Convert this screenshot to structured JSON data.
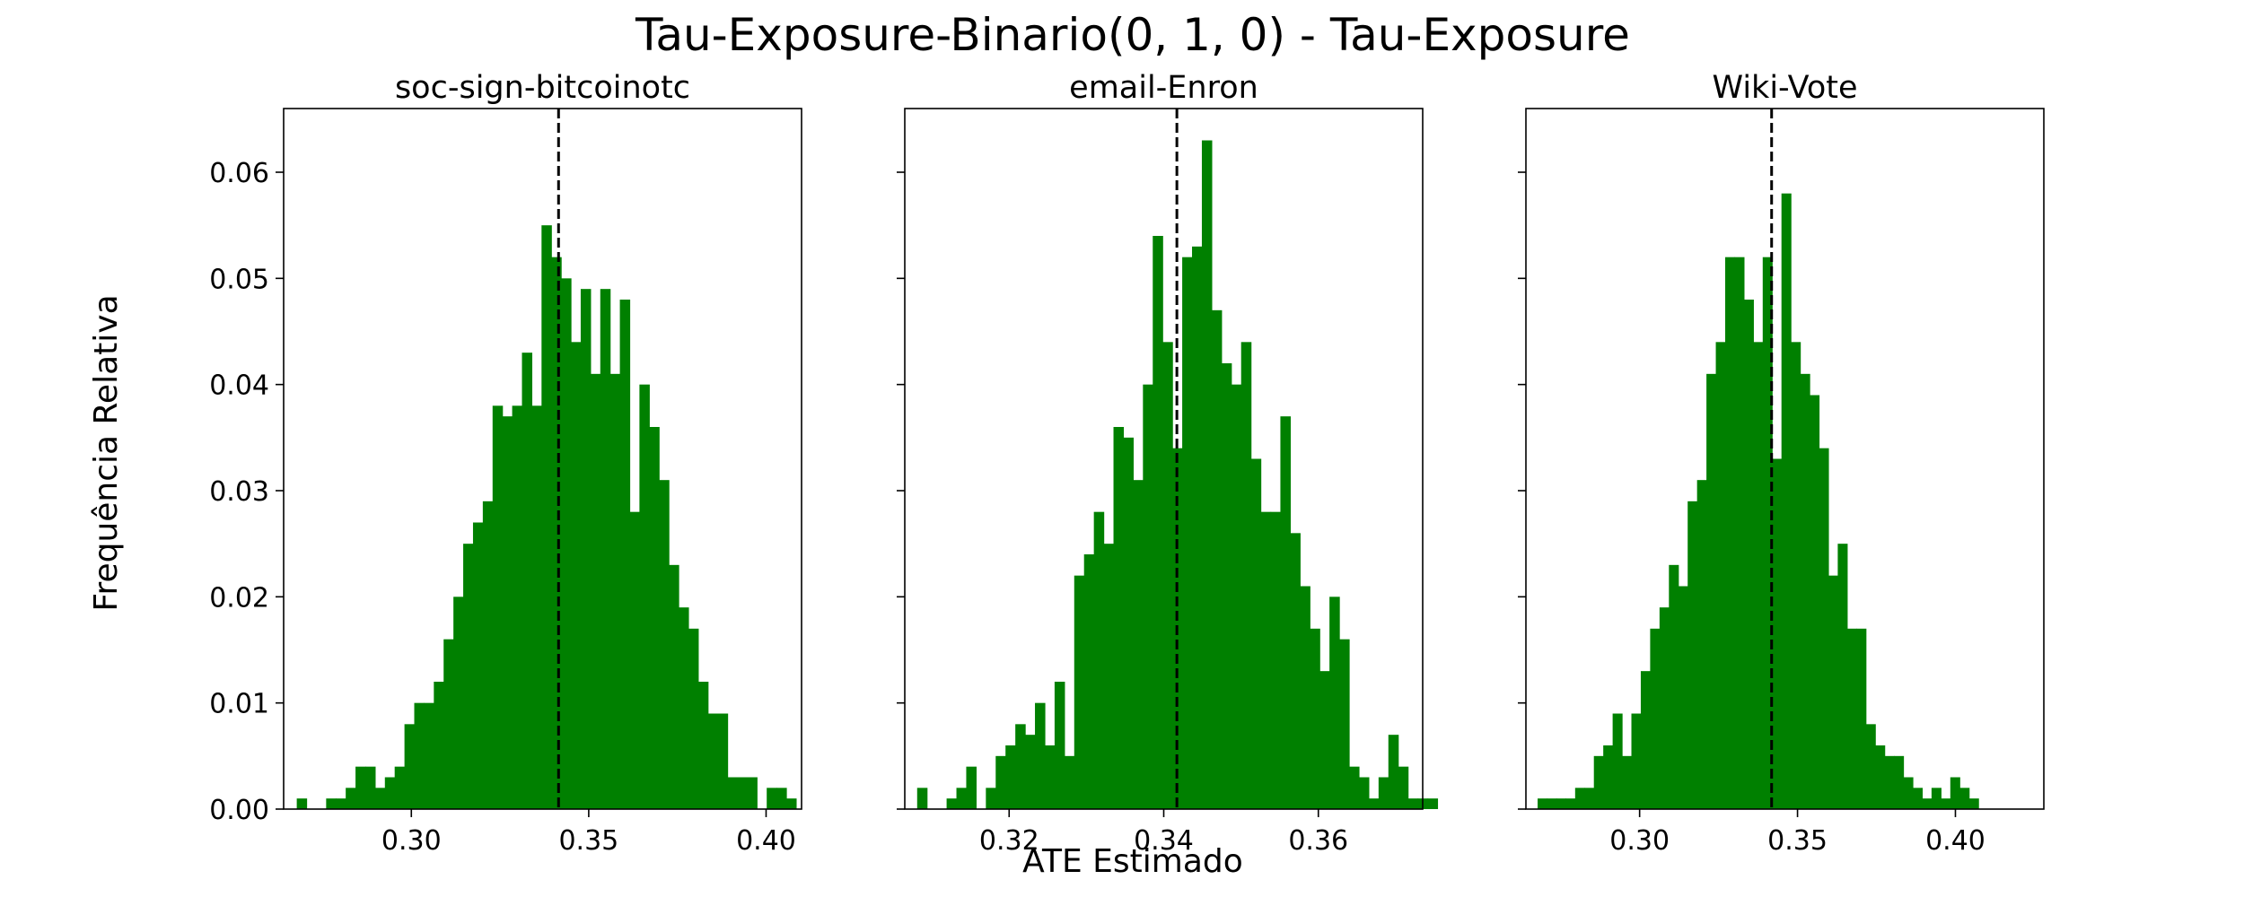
{
  "figure": {
    "title": "Tau-Exposure-Binario(0, 1, 0) - Tau-Exposure",
    "xlabel": "ATE Estimado",
    "ylabel": "Frequência Relativa"
  },
  "colors": {
    "bar": "#008000",
    "axis": "#000000",
    "ref_line": "#000000"
  },
  "chart_data": [
    {
      "type": "bar",
      "title": "soc-sign-bitcoinotc",
      "xlim": [
        0.264,
        0.41
      ],
      "ylim": [
        0,
        0.066
      ],
      "xticks": [
        0.3,
        0.35,
        0.4
      ],
      "xtick_labels": [
        "0.30",
        "0.35",
        "0.40"
      ],
      "yticks": [
        0.0,
        0.01,
        0.02,
        0.03,
        0.04,
        0.05,
        0.06
      ],
      "ytick_labels": [
        "0.00",
        "0.01",
        "0.02",
        "0.03",
        "0.04",
        "0.05",
        "0.06"
      ],
      "bin_start": 0.2677,
      "bin_width": 0.00276,
      "values": [
        0.001,
        0,
        0,
        0.001,
        0.001,
        0.002,
        0.004,
        0.004,
        0.002,
        0.003,
        0.004,
        0.008,
        0.01,
        0.01,
        0.012,
        0.016,
        0.02,
        0.025,
        0.027,
        0.029,
        0.038,
        0.037,
        0.038,
        0.043,
        0.038,
        0.055,
        0.052,
        0.05,
        0.044,
        0.049,
        0.041,
        0.049,
        0.041,
        0.048,
        0.028,
        0.04,
        0.036,
        0.031,
        0.023,
        0.019,
        0.017,
        0.012,
        0.009,
        0.009,
        0.003,
        0.003,
        0.003,
        0,
        0.002,
        0.002,
        0.001
      ],
      "reference_line": 0.3415
    },
    {
      "type": "bar",
      "title": "email-Enron",
      "xlim": [
        0.3065,
        0.3735
      ],
      "ylim": [
        0,
        0.066
      ],
      "xticks": [
        0.32,
        0.34,
        0.36
      ],
      "xtick_labels": [
        "0.32",
        "0.34",
        "0.36"
      ],
      "yticks": [
        0.0,
        0.01,
        0.02,
        0.03,
        0.04,
        0.05,
        0.06
      ],
      "bin_start": 0.3081,
      "bin_width": 0.00127,
      "values": [
        0.002,
        0,
        0,
        0.001,
        0.002,
        0.004,
        0,
        0.002,
        0.005,
        0.006,
        0.008,
        0.007,
        0.01,
        0.006,
        0.012,
        0.005,
        0.022,
        0.024,
        0.028,
        0.025,
        0.036,
        0.035,
        0.031,
        0.04,
        0.054,
        0.044,
        0.034,
        0.052,
        0.053,
        0.063,
        0.047,
        0.042,
        0.04,
        0.044,
        0.033,
        0.028,
        0.028,
        0.037,
        0.026,
        0.021,
        0.017,
        0.013,
        0.02,
        0.016,
        0.004,
        0.003,
        0.001,
        0.003,
        0.007,
        0.004,
        0.001,
        0.001,
        0.001
      ],
      "reference_line": 0.3417
    },
    {
      "type": "bar",
      "title": "Wiki-Vote",
      "xlim": [
        0.264,
        0.428
      ],
      "ylim": [
        0,
        0.066
      ],
      "xticks": [
        0.3,
        0.35,
        0.4
      ],
      "xtick_labels": [
        "0.30",
        "0.35",
        "0.40"
      ],
      "yticks": [
        0.0,
        0.01,
        0.02,
        0.03,
        0.04,
        0.05,
        0.06
      ],
      "bin_start": 0.2677,
      "bin_width": 0.00297,
      "values": [
        0.001,
        0.001,
        0.001,
        0.001,
        0.002,
        0.002,
        0.005,
        0.006,
        0.009,
        0.005,
        0.009,
        0.013,
        0.017,
        0.019,
        0.023,
        0.021,
        0.029,
        0.031,
        0.041,
        0.044,
        0.052,
        0.052,
        0.048,
        0.044,
        0.052,
        0.033,
        0.058,
        0.044,
        0.041,
        0.039,
        0.034,
        0.022,
        0.025,
        0.017,
        0.017,
        0.008,
        0.006,
        0.005,
        0.005,
        0.003,
        0.002,
        0.001,
        0.002,
        0.001,
        0.003,
        0.002,
        0.001
      ],
      "reference_line": 0.3418
    }
  ]
}
